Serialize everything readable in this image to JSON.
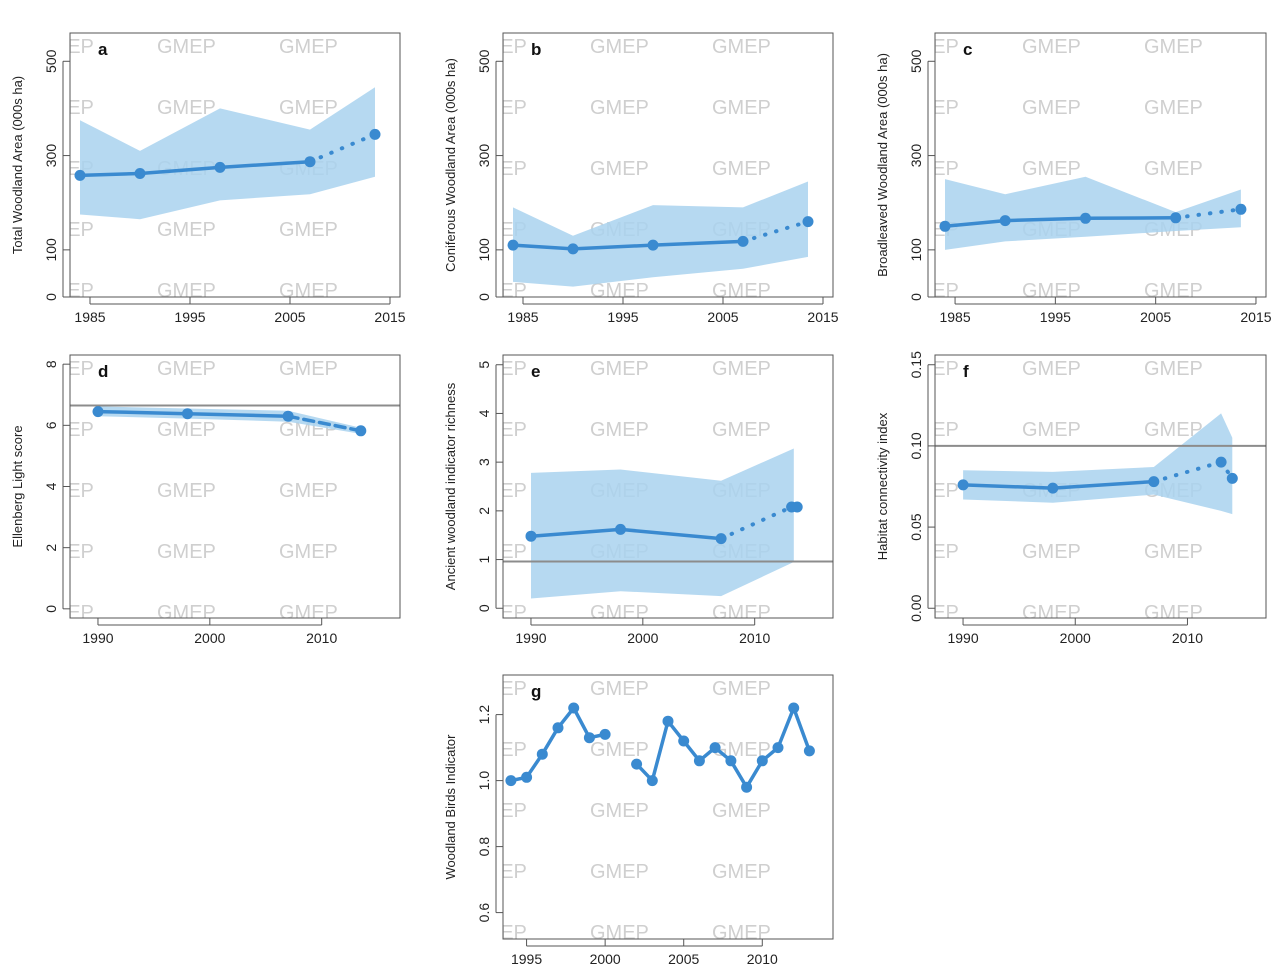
{
  "watermark_text": "GMEP",
  "colors": {
    "line": "#3a8ad0",
    "band": "#a9d2ef",
    "reference": "#8c8c8c",
    "axis": "#555555"
  },
  "chart_data": [
    {
      "id": "a",
      "type": "line",
      "panel_label": "a",
      "ylabel": "Total Woodland Area (000s ha)",
      "xlim": [
        1983,
        2016
      ],
      "ylim": [
        0,
        560
      ],
      "xticks": [
        1985,
        1995,
        2005,
        2015
      ],
      "xtick_labels": [
        "1985",
        "1995",
        "2005",
        "2015"
      ],
      "yticks": [
        0,
        100,
        300,
        500
      ],
      "ytick_labels": [
        "0",
        "100",
        "300",
        "500"
      ],
      "series": [
        {
          "style": "solid",
          "x": [
            1984,
            1990,
            1998,
            2007
          ],
          "y": [
            258,
            262,
            275,
            287
          ]
        },
        {
          "style": "dotted",
          "x": [
            2007,
            2013.5
          ],
          "y": [
            287,
            345
          ]
        }
      ],
      "band": {
        "x": [
          1984,
          1990,
          1998,
          2007,
          2013.5
        ],
        "lower": [
          175,
          165,
          205,
          218,
          255
        ],
        "upper": [
          375,
          310,
          400,
          355,
          445
        ]
      },
      "reference_line": null
    },
    {
      "id": "b",
      "type": "line",
      "panel_label": "b",
      "ylabel": "Coniferous Woodland Area (000s ha)",
      "xlim": [
        1983,
        2016
      ],
      "ylim": [
        0,
        560
      ],
      "xticks": [
        1985,
        1995,
        2005,
        2015
      ],
      "xtick_labels": [
        "1985",
        "1995",
        "2005",
        "2015"
      ],
      "yticks": [
        0,
        100,
        300,
        500
      ],
      "ytick_labels": [
        "0",
        "100",
        "300",
        "500"
      ],
      "series": [
        {
          "style": "solid",
          "x": [
            1984,
            1990,
            1998,
            2007
          ],
          "y": [
            110,
            102,
            110,
            118
          ]
        },
        {
          "style": "dotted",
          "x": [
            2007,
            2013.5
          ],
          "y": [
            118,
            160
          ]
        }
      ],
      "band": {
        "x": [
          1984,
          1990,
          1998,
          2007,
          2013.5
        ],
        "lower": [
          32,
          22,
          42,
          60,
          85
        ],
        "upper": [
          190,
          130,
          195,
          190,
          245
        ]
      },
      "reference_line": null
    },
    {
      "id": "c",
      "type": "line",
      "panel_label": "c",
      "ylabel": "Broadleaved Woodland Area (000s ha)",
      "xlim": [
        1983,
        2016
      ],
      "ylim": [
        0,
        560
      ],
      "xticks": [
        1985,
        1995,
        2005,
        2015
      ],
      "xtick_labels": [
        "1985",
        "1995",
        "2005",
        "2015"
      ],
      "yticks": [
        0,
        100,
        300,
        500
      ],
      "ytick_labels": [
        "0",
        "100",
        "300",
        "500"
      ],
      "series": [
        {
          "style": "solid",
          "x": [
            1984,
            1990,
            1998,
            2007
          ],
          "y": [
            150,
            162,
            167,
            168
          ]
        },
        {
          "style": "dotted",
          "x": [
            2007,
            2013.5
          ],
          "y": [
            168,
            186
          ]
        }
      ],
      "band": {
        "x": [
          1984,
          1990,
          1998,
          2007,
          2013.5
        ],
        "lower": [
          100,
          118,
          128,
          140,
          148
        ],
        "upper": [
          250,
          218,
          255,
          180,
          228
        ]
      },
      "reference_line": null
    },
    {
      "id": "d",
      "type": "line",
      "panel_label": "d",
      "ylabel": "Ellenberg Light score",
      "xlim": [
        1987.5,
        2017
      ],
      "ylim": [
        -0.3,
        8.3
      ],
      "xticks": [
        1990,
        2000,
        2010
      ],
      "xtick_labels": [
        "1990",
        "2000",
        "2010"
      ],
      "yticks": [
        0,
        2,
        4,
        6,
        8
      ],
      "ytick_labels": [
        "0",
        "2",
        "4",
        "6",
        "8"
      ],
      "series": [
        {
          "style": "solid",
          "x": [
            1990,
            1998,
            2007
          ],
          "y": [
            6.45,
            6.38,
            6.3
          ]
        },
        {
          "style": "dashed",
          "x": [
            2007,
            2013.5
          ],
          "y": [
            6.3,
            5.82
          ]
        }
      ],
      "band": {
        "x": [
          1990,
          1998,
          2007,
          2013.5
        ],
        "lower": [
          6.3,
          6.22,
          6.12,
          5.72
        ],
        "upper": [
          6.62,
          6.55,
          6.48,
          5.92
        ]
      },
      "reference_line": 6.65
    },
    {
      "id": "e",
      "type": "line",
      "panel_label": "e",
      "ylabel": "Ancient woodland indicator richness",
      "xlim": [
        1987.5,
        2017
      ],
      "ylim": [
        -0.2,
        5.2
      ],
      "xticks": [
        1990,
        2000,
        2010
      ],
      "xtick_labels": [
        "1990",
        "2000",
        "2010"
      ],
      "yticks": [
        0,
        1,
        2,
        3,
        4,
        5
      ],
      "ytick_labels": [
        "0",
        "1",
        "2",
        "3",
        "4",
        "5"
      ],
      "series": [
        {
          "style": "solid",
          "x": [
            1990,
            1998,
            2007
          ],
          "y": [
            1.48,
            1.62,
            1.43
          ]
        },
        {
          "style": "dotted",
          "x": [
            2007,
            2013.3
          ],
          "y": [
            1.43,
            2.08
          ]
        },
        {
          "style": "solid",
          "x": [
            2013.3,
            2013.8
          ],
          "y": [
            2.08,
            2.08
          ]
        }
      ],
      "band": {
        "x": [
          1990,
          1998,
          2007,
          2013.5
        ],
        "lower": [
          0.2,
          0.35,
          0.25,
          0.95
        ],
        "upper": [
          2.78,
          2.85,
          2.62,
          3.28
        ]
      },
      "reference_line": 0.96
    },
    {
      "id": "f",
      "type": "line",
      "panel_label": "f",
      "ylabel": "Habitat connectivity index",
      "xlim": [
        1987.5,
        2017
      ],
      "ylim": [
        -0.006,
        0.156
      ],
      "xticks": [
        1990,
        2000,
        2010
      ],
      "xtick_labels": [
        "1990",
        "2000",
        "2010"
      ],
      "yticks": [
        0,
        0.05,
        0.1,
        0.15
      ],
      "ytick_labels": [
        "0.00",
        "0.05",
        "0.10",
        "0.15"
      ],
      "series": [
        {
          "style": "solid",
          "x": [
            1990,
            1998,
            2007
          ],
          "y": [
            0.076,
            0.074,
            0.078
          ]
        },
        {
          "style": "dotted",
          "x": [
            2007,
            2013
          ],
          "y": [
            0.078,
            0.09
          ]
        },
        {
          "style": "dotted",
          "x": [
            2013,
            2014
          ],
          "y": [
            0.09,
            0.08
          ]
        }
      ],
      "band": {
        "x": [
          1990,
          1998,
          2007,
          2013,
          2014
        ],
        "lower": [
          0.067,
          0.065,
          0.07,
          0.06,
          0.058
        ],
        "upper": [
          0.085,
          0.084,
          0.087,
          0.12,
          0.105
        ]
      },
      "reference_line": 0.1
    },
    {
      "id": "g",
      "type": "line",
      "panel_label": "g",
      "ylabel": "Woodland Birds Indicator",
      "xlim": [
        1993.5,
        2014.5
      ],
      "ylim": [
        0.52,
        1.32
      ],
      "xticks": [
        1995,
        2000,
        2005,
        2010
      ],
      "xtick_labels": [
        "1995",
        "2000",
        "2005",
        "2010"
      ],
      "yticks": [
        0.6,
        0.8,
        1.0,
        1.2
      ],
      "ytick_labels": [
        "0.6",
        "0.8",
        "1.0",
        "1.2"
      ],
      "series": [
        {
          "style": "solid",
          "x": [
            1994,
            1995,
            1996,
            1997,
            1998,
            1999,
            2000
          ],
          "y": [
            1.0,
            1.01,
            1.08,
            1.16,
            1.22,
            1.13,
            1.14
          ]
        },
        {
          "style": "solid",
          "x": [
            2002,
            2003,
            2004,
            2005,
            2006,
            2007,
            2008,
            2009,
            2010,
            2011,
            2012,
            2013
          ],
          "y": [
            1.05,
            1.0,
            1.18,
            1.12,
            1.06,
            1.1,
            1.06,
            0.98,
            1.06,
            1.1,
            1.22,
            1.09
          ]
        }
      ],
      "band": null,
      "reference_line": null
    }
  ]
}
